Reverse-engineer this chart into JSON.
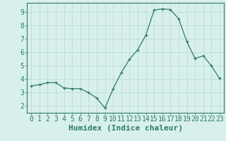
{
  "x_pts": [
    0,
    1,
    2,
    3,
    4,
    5,
    6,
    7,
    8,
    9,
    10,
    11,
    12,
    13,
    14,
    15,
    16,
    17,
    18,
    19,
    20,
    21,
    22,
    23
  ],
  "y_pts": [
    3.5,
    3.6,
    3.75,
    3.75,
    3.35,
    3.3,
    3.3,
    3.0,
    2.6,
    1.85,
    3.3,
    4.5,
    5.5,
    6.2,
    7.3,
    9.15,
    9.25,
    9.2,
    8.5,
    6.8,
    5.55,
    5.75,
    5.0,
    4.05
  ],
  "xlabel": "Humidex (Indice chaleur)",
  "xlim": [
    -0.5,
    23.5
  ],
  "ylim": [
    1.5,
    9.7
  ],
  "yticks": [
    2,
    3,
    4,
    5,
    6,
    7,
    8,
    9
  ],
  "xticks": [
    0,
    1,
    2,
    3,
    4,
    5,
    6,
    7,
    8,
    9,
    10,
    11,
    12,
    13,
    14,
    15,
    16,
    17,
    18,
    19,
    20,
    21,
    22,
    23
  ],
  "line_color": "#2d7a6a",
  "marker": "+",
  "bg_color": "#d8f0ec",
  "grid_color": "#b8d8d0",
  "axis_color": "#2d7a6a",
  "tick_fontsize": 7,
  "label_fontsize": 8
}
